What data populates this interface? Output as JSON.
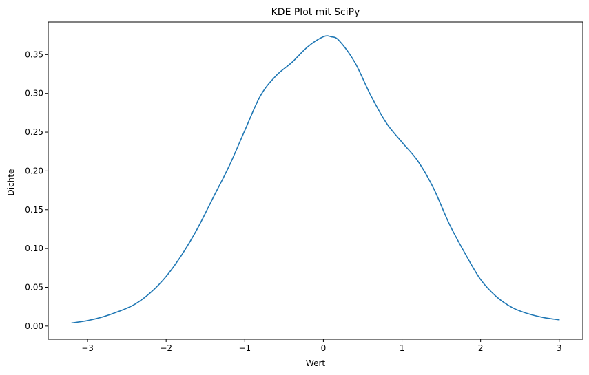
{
  "chart_data": {
    "type": "line",
    "title": "KDE Plot mit SciPy",
    "xlabel": "Wert",
    "ylabel": "Dichte",
    "xlim": [
      -3.5,
      3.3
    ],
    "ylim": [
      -0.017,
      0.392
    ],
    "grid": false,
    "line_color": "#1f77b4",
    "xticks": [
      -3,
      -2,
      -1,
      0,
      1,
      2,
      3
    ],
    "xtick_labels": [
      "−3",
      "−2",
      "−1",
      "0",
      "1",
      "2",
      "3"
    ],
    "yticks": [
      0.0,
      0.05,
      0.1,
      0.15,
      0.2,
      0.25,
      0.3,
      0.35
    ],
    "ytick_labels": [
      "0.00",
      "0.05",
      "0.10",
      "0.15",
      "0.20",
      "0.25",
      "0.30",
      "0.35"
    ],
    "series": [
      {
        "x": [
          -3.2,
          -3.0,
          -2.8,
          -2.6,
          -2.4,
          -2.2,
          -2.0,
          -1.8,
          -1.6,
          -1.4,
          -1.2,
          -1.0,
          -0.8,
          -0.6,
          -0.4,
          -0.2,
          0.0,
          0.1,
          0.2,
          0.4,
          0.6,
          0.8,
          1.0,
          1.2,
          1.4,
          1.6,
          1.8,
          2.0,
          2.2,
          2.4,
          2.6,
          2.8,
          3.0
        ],
        "y": [
          0.004,
          0.007,
          0.012,
          0.019,
          0.028,
          0.043,
          0.064,
          0.092,
          0.126,
          0.166,
          0.206,
          0.252,
          0.297,
          0.323,
          0.34,
          0.36,
          0.373,
          0.373,
          0.368,
          0.34,
          0.298,
          0.262,
          0.237,
          0.213,
          0.178,
          0.132,
          0.094,
          0.06,
          0.038,
          0.024,
          0.016,
          0.011,
          0.008
        ]
      }
    ]
  }
}
